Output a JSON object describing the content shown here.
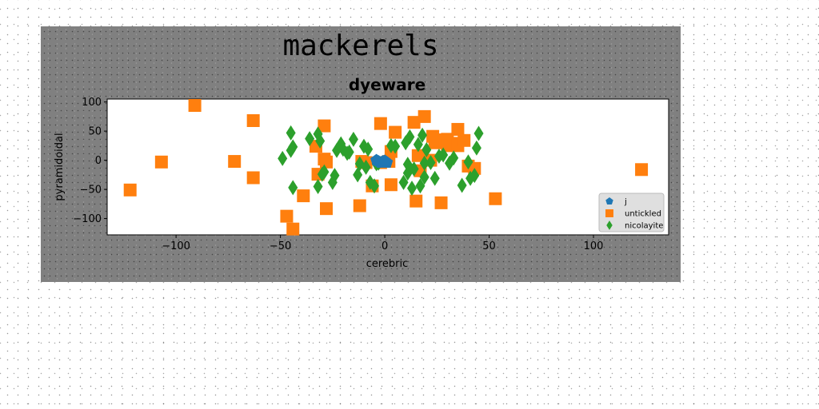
{
  "chart_data": {
    "type": "scatter",
    "suptitle": "mackerels",
    "title": "dyeware",
    "xlabel": "cerebric",
    "ylabel": "pyramidoidal",
    "xlim": [
      -133,
      136
    ],
    "ylim": [
      -128,
      105
    ],
    "xticks": [
      -100,
      -50,
      0,
      50,
      100
    ],
    "yticks": [
      -100,
      -50,
      0,
      50,
      100
    ],
    "xtick_labels": [
      "−100",
      "−50",
      "0",
      "50",
      "100"
    ],
    "ytick_labels": [
      "−100",
      "−50",
      "0",
      "50",
      "100"
    ],
    "grid": false,
    "legend_position": "lower-right",
    "series": [
      {
        "name": "j",
        "marker": "pentagon",
        "color": "#1f77b4",
        "points": [
          [
            -3,
            -2
          ],
          [
            -2,
            -4
          ],
          [
            -1,
            -2
          ],
          [
            1,
            -4
          ],
          [
            -4,
            0
          ],
          [
            0,
            -1
          ]
        ]
      },
      {
        "name": "untickled",
        "marker": "square",
        "color": "#ff7f0e",
        "points": [
          [
            -91,
            94
          ],
          [
            -122,
            -51
          ],
          [
            -107,
            -3
          ],
          [
            -72,
            -2
          ],
          [
            -63,
            68
          ],
          [
            -63,
            -30
          ],
          [
            -47,
            -96
          ],
          [
            -44,
            -118
          ],
          [
            -39,
            -61
          ],
          [
            -33,
            24
          ],
          [
            -32,
            -24
          ],
          [
            -29,
            59
          ],
          [
            -29,
            2
          ],
          [
            -28,
            -3
          ],
          [
            -28,
            -83
          ],
          [
            -12,
            -78
          ],
          [
            -11,
            -2
          ],
          [
            -9,
            -4
          ],
          [
            -6,
            -44
          ],
          [
            -2,
            -4
          ],
          [
            -2,
            63
          ],
          [
            2,
            -2
          ],
          [
            3,
            15
          ],
          [
            3,
            -42
          ],
          [
            5,
            48
          ],
          [
            14,
            65
          ],
          [
            15,
            -70
          ],
          [
            16,
            8
          ],
          [
            17,
            -18
          ],
          [
            19,
            75
          ],
          [
            22,
            0
          ],
          [
            23,
            41
          ],
          [
            24,
            30
          ],
          [
            26,
            35
          ],
          [
            27,
            -73
          ],
          [
            30,
            36
          ],
          [
            30,
            25
          ],
          [
            33,
            29
          ],
          [
            35,
            53
          ],
          [
            35,
            25
          ],
          [
            38,
            34
          ],
          [
            40,
            -10
          ],
          [
            43,
            -14
          ],
          [
            53,
            -66
          ],
          [
            123,
            -16
          ]
        ]
      },
      {
        "name": "nicolayite",
        "marker": "diamond",
        "color": "#2ca02c",
        "points": [
          [
            -49,
            3
          ],
          [
            -45,
            47
          ],
          [
            -45,
            17
          ],
          [
            -44,
            23
          ],
          [
            -44,
            -47
          ],
          [
            -36,
            37
          ],
          [
            -32,
            -45
          ],
          [
            -32,
            45
          ],
          [
            -31,
            33
          ],
          [
            -30,
            -24
          ],
          [
            -29,
            -20
          ],
          [
            -25,
            -38
          ],
          [
            -24,
            -26
          ],
          [
            -23,
            17
          ],
          [
            -21,
            28
          ],
          [
            -20,
            19
          ],
          [
            -18,
            12
          ],
          [
            -17,
            14
          ],
          [
            -15,
            36
          ],
          [
            -13,
            -25
          ],
          [
            -12,
            -6
          ],
          [
            -10,
            24
          ],
          [
            -9,
            -12
          ],
          [
            -8,
            19
          ],
          [
            -7,
            -38
          ],
          [
            -5,
            -44
          ],
          [
            -4,
            -6
          ],
          [
            -3,
            -5
          ],
          [
            3,
            25
          ],
          [
            5,
            24
          ],
          [
            9,
            -38
          ],
          [
            10,
            30
          ],
          [
            11,
            -7
          ],
          [
            11,
            -22
          ],
          [
            12,
            40
          ],
          [
            13,
            -48
          ],
          [
            14,
            -15
          ],
          [
            16,
            27
          ],
          [
            17,
            -44
          ],
          [
            18,
            43
          ],
          [
            19,
            -5
          ],
          [
            19,
            -29
          ],
          [
            20,
            18
          ],
          [
            22,
            -4
          ],
          [
            24,
            -31
          ],
          [
            26,
            7
          ],
          [
            28,
            9
          ],
          [
            31,
            -5
          ],
          [
            33,
            4
          ],
          [
            37,
            -43
          ],
          [
            40,
            -3
          ],
          [
            41,
            -31
          ],
          [
            43,
            -26
          ],
          [
            44,
            21
          ],
          [
            45,
            46
          ]
        ]
      }
    ]
  }
}
